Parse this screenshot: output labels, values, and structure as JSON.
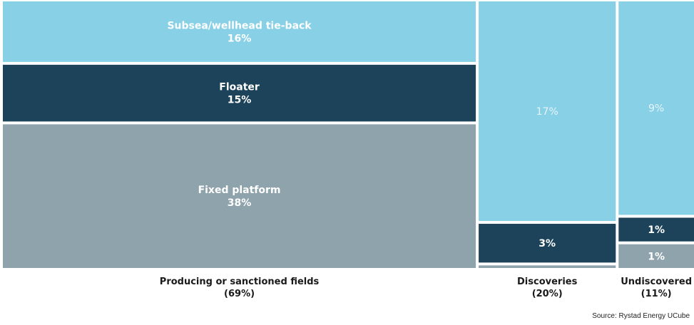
{
  "chart_data": {
    "type": "mosaic",
    "colors": {
      "subsea": "#87d0e6",
      "floater": "#1c435a",
      "fixed": "#8fa3ad"
    },
    "columns": [
      {
        "label": "Producing or sanctioned fields",
        "share_label": "(69%)",
        "value": 69,
        "segments": [
          {
            "key": "subsea",
            "name": "Subsea/wellhead tie-back",
            "value": 16,
            "value_label": "16%"
          },
          {
            "key": "floater",
            "name": "Floater",
            "value": 15,
            "value_label": "15%"
          },
          {
            "key": "fixed",
            "name": "Fixed platform",
            "value": 38,
            "value_label": "38%"
          }
        ]
      },
      {
        "label": "Discoveries",
        "share_label": "(20%)",
        "value": 20,
        "segments": [
          {
            "key": "subsea",
            "name": "",
            "value": 17,
            "value_label": "17%"
          },
          {
            "key": "floater",
            "name": "",
            "value": 3,
            "value_label": "3%"
          },
          {
            "key": "fixed",
            "name": "",
            "value": 0.2,
            "value_label": ""
          }
        ]
      },
      {
        "label": "Undiscovered",
        "share_label": "(11%)",
        "value": 11,
        "segments": [
          {
            "key": "subsea",
            "name": "",
            "value": 9,
            "value_label": "9%"
          },
          {
            "key": "floater",
            "name": "",
            "value": 1,
            "value_label": "1%"
          },
          {
            "key": "fixed",
            "name": "",
            "value": 1,
            "value_label": "1%"
          }
        ]
      }
    ]
  },
  "source": "Source: Rystad Energy UCube"
}
